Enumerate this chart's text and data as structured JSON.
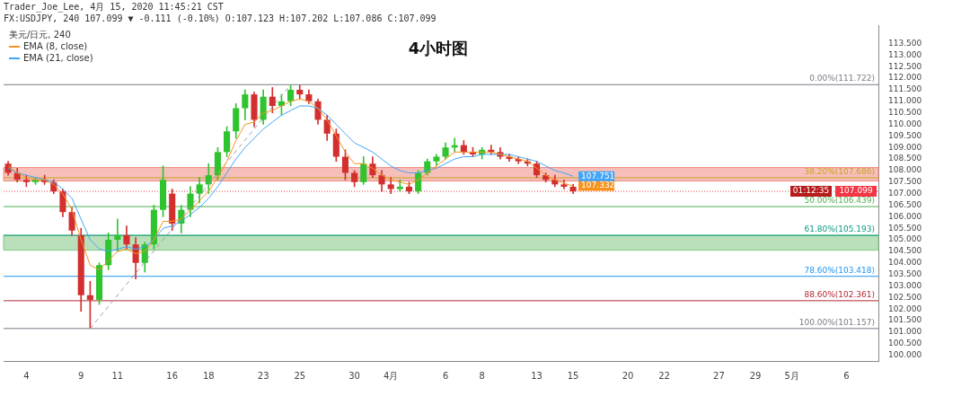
{
  "chart_data": {
    "type": "candlestick",
    "title": "4小时图",
    "legend_title": "美元/日元, 240",
    "legend": "top left",
    "annotations": [
      "Trader_Joe_Lee, 4月 15, 2020 11:45:21 CST",
      "FX:USDJPY, 240 107.099 ▼ -0.111 (-0.10%) O:107.123 H:107.202 L:107.086 C:107.099",
      "01:12:35"
    ],
    "categories": [
      null,
      null,
      "4",
      null,
      null,
      null,
      null,
      null,
      "9",
      null,
      null,
      null,
      "11",
      null,
      null,
      null,
      null,
      null,
      "16",
      null,
      null,
      null,
      "18",
      null,
      null,
      null,
      null,
      null,
      "23",
      null,
      null,
      null,
      "25",
      null,
      null,
      null,
      null,
      null,
      "30",
      null,
      null,
      null,
      "4月",
      null,
      null,
      null,
      null,
      null,
      "6",
      null,
      null,
      null,
      "8",
      null,
      null,
      null,
      null,
      null,
      "13",
      null,
      null,
      null,
      "15",
      null,
      null,
      null,
      null,
      null,
      "20",
      null,
      null,
      null,
      "22",
      null,
      null,
      null,
      null,
      null,
      "27",
      null,
      null,
      null,
      "29",
      null,
      null,
      null,
      "5月",
      null,
      null,
      null,
      null,
      null,
      "6",
      null,
      null,
      null
    ],
    "ohlc": [
      [
        108.3,
        108.4,
        107.8,
        107.9
      ],
      [
        107.9,
        108.1,
        107.5,
        107.6
      ],
      [
        107.6,
        107.8,
        107.3,
        107.5
      ],
      [
        107.5,
        107.7,
        107.4,
        107.6
      ],
      [
        107.6,
        107.8,
        107.4,
        107.5
      ],
      [
        107.5,
        107.6,
        107.0,
        107.1
      ],
      [
        107.1,
        107.2,
        106.0,
        106.2
      ],
      [
        106.2,
        106.4,
        105.2,
        105.4
      ],
      [
        105.2,
        105.5,
        101.9,
        102.6
      ],
      [
        102.6,
        103.2,
        101.18,
        102.4
      ],
      [
        102.4,
        104.0,
        102.2,
        103.9
      ],
      [
        103.9,
        105.3,
        103.7,
        105.0
      ],
      [
        105.0,
        105.9,
        104.5,
        105.2
      ],
      [
        105.2,
        105.6,
        104.6,
        104.8
      ],
      [
        104.8,
        105.1,
        103.3,
        104.0
      ],
      [
        104.0,
        104.9,
        103.6,
        104.8
      ],
      [
        104.8,
        106.5,
        104.6,
        106.3
      ],
      [
        106.3,
        108.2,
        106.0,
        107.6
      ],
      [
        107.0,
        107.2,
        105.4,
        105.7
      ],
      [
        105.7,
        106.5,
        105.3,
        106.3
      ],
      [
        106.3,
        107.3,
        106.0,
        107.0
      ],
      [
        107.0,
        107.7,
        106.6,
        107.4
      ],
      [
        107.4,
        108.3,
        107.0,
        107.8
      ],
      [
        107.8,
        109.0,
        107.6,
        108.8
      ],
      [
        108.8,
        109.9,
        108.6,
        109.7
      ],
      [
        109.7,
        110.9,
        109.4,
        110.7
      ],
      [
        110.7,
        111.5,
        110.2,
        111.3
      ],
      [
        111.3,
        111.4,
        109.9,
        110.2
      ],
      [
        110.2,
        111.5,
        110.0,
        111.2
      ],
      [
        111.2,
        111.6,
        110.5,
        110.8
      ],
      [
        110.8,
        111.3,
        110.4,
        111.0
      ],
      [
        111.0,
        111.72,
        110.8,
        111.5
      ],
      [
        111.5,
        111.7,
        111.1,
        111.3
      ],
      [
        111.3,
        111.5,
        110.9,
        111.0
      ],
      [
        111.0,
        111.1,
        110.0,
        110.2
      ],
      [
        110.2,
        110.4,
        109.3,
        109.6
      ],
      [
        109.6,
        109.8,
        108.4,
        108.6
      ],
      [
        108.6,
        108.9,
        107.6,
        107.9
      ],
      [
        107.9,
        108.0,
        107.3,
        107.5
      ],
      [
        107.5,
        108.6,
        107.4,
        108.3
      ],
      [
        108.3,
        108.6,
        107.7,
        107.8
      ],
      [
        107.8,
        108.0,
        107.1,
        107.4
      ],
      [
        107.4,
        107.7,
        107.0,
        107.2
      ],
      [
        107.2,
        107.6,
        107.1,
        107.3
      ],
      [
        107.3,
        107.5,
        107.0,
        107.1
      ],
      [
        107.1,
        108.0,
        107.0,
        107.9
      ],
      [
        107.9,
        108.5,
        107.8,
        108.4
      ],
      [
        108.4,
        108.7,
        108.2,
        108.6
      ],
      [
        108.6,
        109.2,
        108.5,
        109.0
      ],
      [
        109.0,
        109.4,
        108.8,
        109.1
      ],
      [
        109.1,
        109.3,
        108.7,
        108.8
      ],
      [
        108.8,
        109.0,
        108.6,
        108.7
      ],
      [
        108.7,
        109.0,
        108.5,
        108.9
      ],
      [
        108.9,
        109.1,
        108.7,
        108.8
      ],
      [
        108.8,
        109.0,
        108.5,
        108.6
      ],
      [
        108.6,
        108.7,
        108.4,
        108.5
      ],
      [
        108.5,
        108.6,
        108.3,
        108.4
      ],
      [
        108.4,
        108.5,
        108.2,
        108.3
      ],
      [
        108.3,
        108.4,
        107.7,
        107.8
      ],
      [
        107.8,
        107.9,
        107.5,
        107.6
      ],
      [
        107.6,
        107.8,
        107.3,
        107.4
      ],
      [
        107.4,
        107.6,
        107.2,
        107.3
      ],
      [
        107.3,
        107.4,
        107.0,
        107.099
      ],
      null,
      null,
      null,
      null,
      null,
      null,
      null,
      null,
      null,
      null,
      null,
      null,
      null,
      null,
      null,
      null,
      null,
      null,
      null,
      null,
      null,
      null,
      null,
      null,
      null,
      null,
      null,
      null,
      null,
      null,
      null,
      null,
      null
    ],
    "series": [
      {
        "type": "line",
        "name": "EMA (8, close)",
        "color": "#f7931e",
        "value_labels": [
          null,
          null,
          null,
          null,
          null,
          null,
          null,
          null,
          null,
          null,
          null,
          null,
          null,
          null,
          null,
          null,
          null,
          null,
          null,
          null,
          null,
          null,
          null,
          null,
          null,
          null,
          null,
          null,
          null,
          null,
          null,
          null,
          null,
          null,
          null,
          null,
          null,
          null,
          null,
          null,
          null,
          null,
          null,
          null,
          null,
          null,
          null,
          null,
          null,
          null,
          null,
          null,
          null,
          null,
          null,
          null,
          null,
          null,
          null,
          null,
          null,
          null,
          "107.332",
          null,
          null,
          null,
          null,
          null,
          null,
          null,
          null,
          null,
          null,
          null,
          null,
          null,
          null,
          null,
          null,
          null,
          null,
          null,
          null,
          null,
          null,
          null,
          null,
          null,
          null,
          null,
          null,
          null,
          null,
          null,
          null,
          null
        ],
        "values": [
          108.2,
          107.9,
          107.7,
          107.6,
          107.6,
          107.4,
          107.0,
          106.3,
          105.0,
          103.9,
          103.7,
          104.1,
          104.5,
          104.6,
          104.4,
          104.5,
          105.0,
          105.8,
          105.8,
          105.9,
          106.3,
          106.7,
          107.1,
          107.7,
          108.4,
          109.3,
          110.0,
          110.1,
          110.5,
          110.6,
          110.8,
          111.0,
          111.1,
          111.0,
          110.7,
          110.2,
          109.5,
          108.8,
          108.3,
          108.3,
          108.1,
          107.8,
          107.6,
          107.5,
          107.4,
          107.6,
          107.9,
          108.2,
          108.5,
          108.8,
          108.8,
          108.8,
          108.8,
          108.8,
          108.7,
          108.6,
          108.5,
          108.4,
          108.1,
          107.8,
          107.6,
          107.45,
          107.332,
          null,
          null,
          null,
          null,
          null,
          null,
          null,
          null,
          null,
          null,
          null,
          null,
          null,
          null,
          null,
          null,
          null,
          null,
          null,
          null,
          null,
          null,
          null,
          null,
          null,
          null,
          null,
          null,
          null,
          null,
          null,
          null,
          null
        ]
      },
      {
        "type": "line",
        "name": "EMA (21, close)",
        "color": "#42a5f5",
        "value_labels": [
          null,
          null,
          null,
          null,
          null,
          null,
          null,
          null,
          null,
          null,
          null,
          null,
          null,
          null,
          null,
          null,
          null,
          null,
          null,
          null,
          null,
          null,
          null,
          null,
          null,
          null,
          null,
          null,
          null,
          null,
          null,
          null,
          null,
          null,
          null,
          null,
          null,
          null,
          null,
          null,
          null,
          null,
          null,
          null,
          null,
          null,
          null,
          null,
          null,
          null,
          null,
          null,
          null,
          null,
          null,
          null,
          null,
          null,
          null,
          null,
          null,
          null,
          "107.751",
          null,
          null,
          null,
          null,
          null,
          null,
          null,
          null,
          null,
          null,
          null,
          null,
          null,
          null,
          null,
          null,
          null,
          null,
          null,
          null,
          null,
          null,
          null,
          null,
          null,
          null,
          null,
          null,
          null,
          null,
          null,
          null,
          null
        ],
        "values": [
          108.1,
          107.9,
          107.8,
          107.7,
          107.6,
          107.5,
          107.2,
          106.8,
          105.9,
          105.0,
          104.6,
          104.5,
          104.6,
          104.7,
          104.6,
          104.7,
          105.0,
          105.5,
          105.6,
          105.8,
          106.1,
          106.4,
          106.8,
          107.3,
          107.9,
          108.5,
          109.0,
          109.4,
          109.8,
          110.1,
          110.4,
          110.6,
          110.8,
          110.8,
          110.7,
          110.4,
          110.0,
          109.6,
          109.2,
          109.0,
          108.8,
          108.5,
          108.2,
          108.0,
          107.9,
          107.9,
          108.0,
          108.1,
          108.3,
          108.5,
          108.6,
          108.6,
          108.7,
          108.7,
          108.7,
          108.7,
          108.6,
          108.5,
          108.4,
          108.2,
          108.0,
          107.9,
          107.751,
          null,
          null,
          null,
          null,
          null,
          null,
          null,
          null,
          null,
          null,
          null,
          null,
          null,
          null,
          null,
          null,
          null,
          null,
          null,
          null,
          null,
          null,
          null,
          null,
          null,
          null,
          null,
          null,
          null,
          null,
          null,
          null,
          null
        ]
      },
      {
        "type": "line",
        "color": "#9e9e9e",
        "line_style": "dashed",
        "values": [
          null,
          null,
          null,
          null,
          null,
          null,
          null,
          null,
          null,
          101.157,
          null,
          null,
          null,
          null,
          null,
          null,
          null,
          null,
          null,
          null,
          null,
          null,
          null,
          null,
          null,
          null,
          null,
          null,
          null,
          null,
          null,
          111.722,
          null,
          null,
          null,
          null,
          null,
          null,
          null,
          null,
          null,
          null,
          null,
          null,
          null,
          null,
          null,
          null,
          null,
          null,
          null,
          null,
          null,
          null,
          null,
          null,
          null,
          null,
          null,
          null,
          null,
          null,
          null,
          null,
          null,
          null,
          null,
          null,
          null,
          null,
          null,
          null,
          null,
          null,
          null,
          null,
          null,
          null,
          null,
          null,
          null,
          null,
          null,
          null,
          null,
          null,
          null,
          null,
          null,
          null,
          null,
          null,
          null,
          null,
          null,
          null
        ]
      }
    ],
    "ylim": [
      99.75,
      114.3
    ],
    "yticks": [
      {
        "value": 100,
        "label": "100.000"
      },
      {
        "value": 100.5,
        "label": "100.500"
      },
      {
        "value": 101,
        "label": "101.000"
      },
      {
        "value": 101.5,
        "label": "101.500"
      },
      {
        "value": 102,
        "label": "102.000"
      },
      {
        "value": 102.5,
        "label": "102.500"
      },
      {
        "value": 103,
        "label": "103.000"
      },
      {
        "value": 103.5,
        "label": "103.500"
      },
      {
        "value": 104,
        "label": "104.000"
      },
      {
        "value": 104.5,
        "label": "104.500"
      },
      {
        "value": 105,
        "label": "105.000"
      },
      {
        "value": 105.5,
        "label": "105.500"
      },
      {
        "value": 106,
        "label": "106.000"
      },
      {
        "value": 106.5,
        "label": "106.500"
      },
      {
        "value": 107,
        "label": "107.000"
      },
      {
        "value": 107.5,
        "label": "107.500"
      },
      {
        "value": 108,
        "label": "108.000"
      },
      {
        "value": 108.5,
        "label": "108.500"
      },
      {
        "value": 109,
        "label": "109.000"
      },
      {
        "value": 109.5,
        "label": "109.500"
      },
      {
        "value": 110,
        "label": "110.000"
      },
      {
        "value": 110.5,
        "label": "110.500"
      },
      {
        "value": 111,
        "label": "111.000"
      },
      {
        "value": 111.5,
        "label": "111.500"
      },
      {
        "value": 112,
        "label": "112.000"
      },
      {
        "value": 112.5,
        "label": "112.500"
      },
      {
        "value": 113,
        "label": "113.000"
      },
      {
        "value": 113.5,
        "label": "113.500"
      }
    ],
    "ref_lines": [
      {
        "axis": "y",
        "value": 111.722,
        "label": "0.00%(111.722)",
        "color": "#787b86"
      },
      {
        "axis": "y",
        "value": 107.686,
        "label": "38.20%(107.686)",
        "color": "#c9a227"
      },
      {
        "axis": "y",
        "value": 106.439,
        "label": "50.00%(106.439)",
        "color": "#4caf50"
      },
      {
        "axis": "y",
        "value": 105.193,
        "label": "61.80%(105.193)",
        "color": "#089981"
      },
      {
        "axis": "y",
        "value": 103.418,
        "label": "78.60%(103.418)",
        "color": "#2196f3"
      },
      {
        "axis": "y",
        "value": 102.361,
        "label": "88.60%(102.361)",
        "color": "#b22833"
      },
      {
        "axis": "y",
        "value": 101.157,
        "label": "100.00%(101.157)",
        "color": "#787b86"
      },
      {
        "axis": "y",
        "value": 107.099,
        "label": "107.099",
        "color": "#f23645",
        "line_style": "dotted"
      }
    ],
    "bands": [
      {
        "axis": "y",
        "from": 104.55,
        "to": 105.193,
        "color": "#81c784"
      },
      {
        "axis": "y",
        "from": 107.55,
        "to": 108.13,
        "color": "#ef8a80"
      }
    ]
  }
}
